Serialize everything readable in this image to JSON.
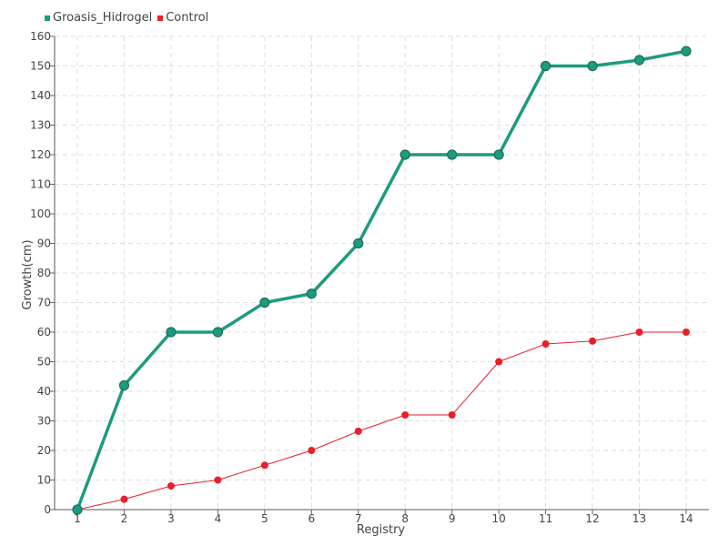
{
  "chart_data": {
    "type": "line",
    "title": "",
    "xlabel": "Registry",
    "ylabel": "Growth(cm)",
    "categories": [
      "1",
      "2",
      "3",
      "4",
      "5",
      "6",
      "7",
      "8",
      "9",
      "10",
      "11",
      "12",
      "13",
      "14"
    ],
    "ylim": [
      0,
      160
    ],
    "y_ticks": [
      0,
      10,
      20,
      30,
      40,
      50,
      60,
      70,
      80,
      90,
      100,
      110,
      120,
      130,
      140,
      150,
      160
    ],
    "grid": true,
    "legend_position": "top-left",
    "series": [
      {
        "name": "Groasis_Hidrogel",
        "color": "#1e9b7f",
        "values": [
          0,
          42,
          60,
          60,
          70,
          73,
          90,
          120,
          120,
          120,
          150,
          150,
          152,
          155
        ]
      },
      {
        "name": "Control",
        "color": "#e8202a",
        "values": [
          0,
          3.5,
          8,
          10,
          15,
          20,
          26.5,
          32,
          32,
          50,
          56,
          57,
          60,
          60
        ]
      }
    ]
  }
}
